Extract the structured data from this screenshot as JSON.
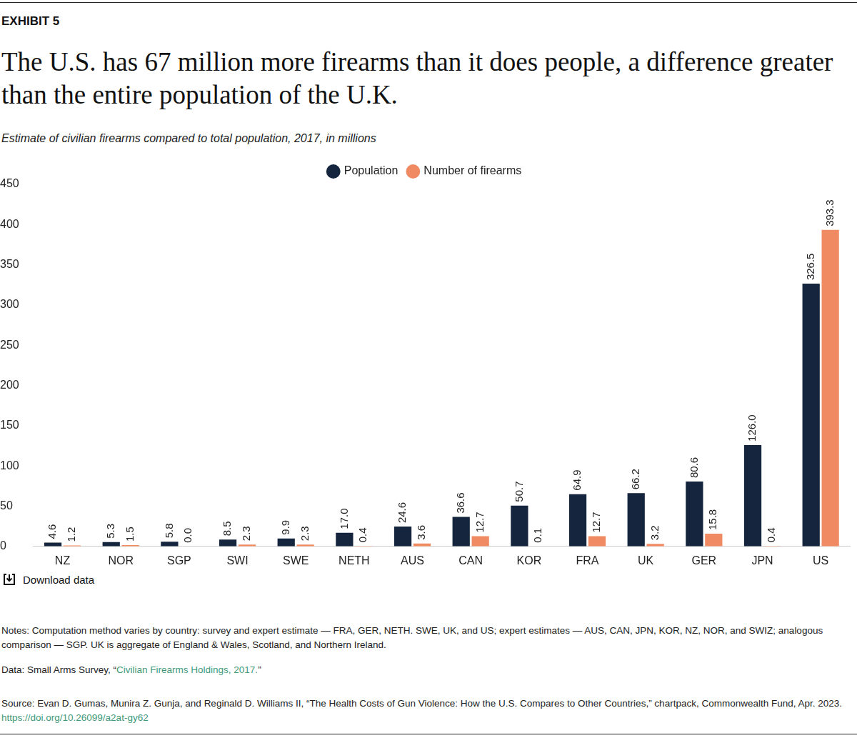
{
  "header_label": "EXHIBIT 5",
  "download_label": "Download data",
  "notes": "Notes: Computation method varies by country: survey and expert estimate — FRA, GER, NETH. SWE, UK, and US; expert estimates — AUS, CAN, JPN, KOR, NZ, NOR, and SWIZ; analogous comparison — SGP. UK is aggregate of England & Wales, Scotland, and Northern Ireland.",
  "data_note": {
    "prefix": "Data: Small Arms Survey, “",
    "link": "Civilian Firearms Holdings, 2017.",
    "suffix": "”"
  },
  "source": {
    "text": "Source: Evan D. Gumas, Munira Z. Gunja, and Reginald D. Williams II, “The Health Costs of Gun Violence: How the U.S. Compares to Other Countries,” chartpack, Commonwealth Fund, Apr. 2023. ",
    "link": "https://doi.org/10.26099/a2at-gy62"
  },
  "chart_data": {
    "type": "bar",
    "title": "The U.S. has 67 million more firearms than it does people, a difference greater than the entire population of the U.K.",
    "subtitle": "Estimate of civilian firearms compared to total population, 2017, in millions",
    "categories": [
      "NZ",
      "NOR",
      "SGP",
      "SWI",
      "SWE",
      "NETH",
      "AUS",
      "CAN",
      "KOR",
      "FRA",
      "UK",
      "GER",
      "JPN",
      "US"
    ],
    "series": [
      {
        "name": "Population",
        "color": "#14253d",
        "values": [
          4.6,
          5.3,
          5.8,
          8.5,
          9.9,
          17.0,
          24.6,
          36.6,
          50.7,
          64.9,
          66.2,
          80.6,
          126.0,
          326.5
        ],
        "value_labels": [
          "4.6",
          "5.3",
          "5.8",
          "8.5",
          "9.9",
          "17.0",
          "24.6",
          "36.6",
          "50.7",
          "64.9",
          "66.2",
          "80.6",
          "126.0",
          "326.5"
        ]
      },
      {
        "name": "Number of firearms",
        "color": "#f08a63",
        "values": [
          1.2,
          1.5,
          0.0,
          2.3,
          2.3,
          0.4,
          3.6,
          12.7,
          0.1,
          12.7,
          3.2,
          15.8,
          0.4,
          393.3
        ],
        "value_labels": [
          "1.2",
          "1.5",
          "0.0",
          "2.3",
          "2.3",
          "0.4",
          "3.6",
          "12.7",
          "0.1",
          "12.7",
          "3.2",
          "15.8",
          "0.4",
          "393.3"
        ]
      }
    ],
    "ylim": [
      0,
      450
    ],
    "yticks": [
      0,
      50,
      100,
      150,
      200,
      250,
      300,
      350,
      400,
      450
    ],
    "grid": false,
    "legend": "top",
    "data_labels": true
  }
}
